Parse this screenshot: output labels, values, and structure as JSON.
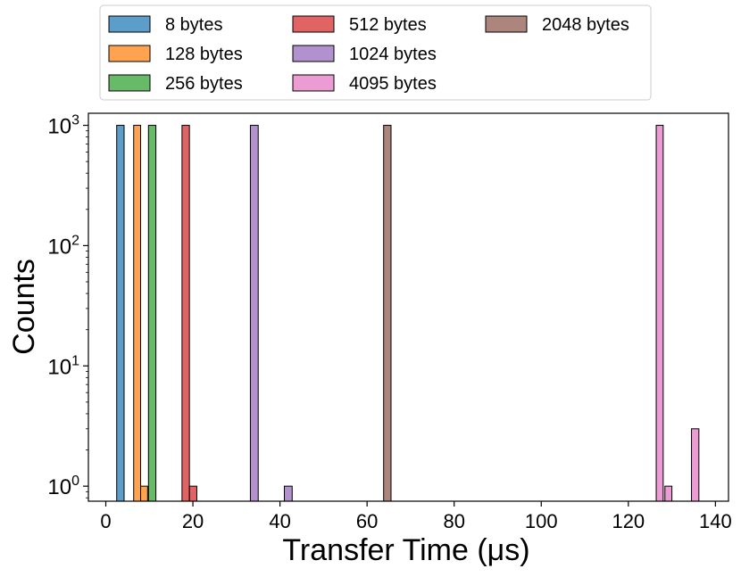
{
  "chart_data": {
    "type": "bar",
    "xlabel": "Transfer Time (μs)",
    "ylabel": "Counts",
    "xlim": [
      -4,
      143
    ],
    "ylim": [
      0.75,
      1260
    ],
    "yscale": "log",
    "grid": false,
    "legend_position": "top, outside the plot, 3 columns",
    "x_ticks": [
      0,
      20,
      40,
      60,
      80,
      100,
      120,
      140
    ],
    "y_ticks": [
      {
        "value": 1,
        "base": "10",
        "exp": "0"
      },
      {
        "value": 10,
        "base": "10",
        "exp": "1"
      },
      {
        "value": 100,
        "base": "10",
        "exp": "2"
      },
      {
        "value": 1000,
        "base": "10",
        "exp": "3"
      }
    ],
    "series": [
      {
        "name": "8 bytes",
        "color": "#1f77b4",
        "bins": [
          {
            "x0": 2.5,
            "x1": 4.2,
            "count": 1000
          }
        ]
      },
      {
        "name": "128 bytes",
        "color": "#ff7f0e",
        "bins": [
          {
            "x0": 6.4,
            "x1": 8.0,
            "count": 1000
          },
          {
            "x0": 8.0,
            "x1": 9.6,
            "count": 1
          }
        ]
      },
      {
        "name": "256 bytes",
        "color": "#2ca02c",
        "bins": [
          {
            "x0": 9.8,
            "x1": 11.5,
            "count": 1000
          }
        ]
      },
      {
        "name": "512 bytes",
        "color": "#d62728",
        "bins": [
          {
            "x0": 17.5,
            "x1": 19.2,
            "count": 1000
          },
          {
            "x0": 19.2,
            "x1": 20.9,
            "count": 1
          }
        ]
      },
      {
        "name": "1024 bytes",
        "color": "#9467bd",
        "bins": [
          {
            "x0": 33.2,
            "x1": 35.0,
            "count": 1000
          },
          {
            "x0": 41.0,
            "x1": 42.8,
            "count": 1
          }
        ]
      },
      {
        "name": "2048 bytes",
        "color": "#8c564b",
        "bins": [
          {
            "x0": 63.8,
            "x1": 65.5,
            "count": 1000
          }
        ]
      },
      {
        "name": "4095 bytes",
        "color": "#e377c2",
        "bins": [
          {
            "x0": 126.4,
            "x1": 128.0,
            "count": 1000
          },
          {
            "x0": 128.4,
            "x1": 130.0,
            "count": 1
          },
          {
            "x0": 134.5,
            "x1": 136.2,
            "count": 3
          }
        ]
      }
    ],
    "legend_order": [
      "8 bytes",
      "128 bytes",
      "256 bytes",
      "512 bytes",
      "1024 bytes",
      "4095 bytes",
      "2048 bytes"
    ]
  }
}
